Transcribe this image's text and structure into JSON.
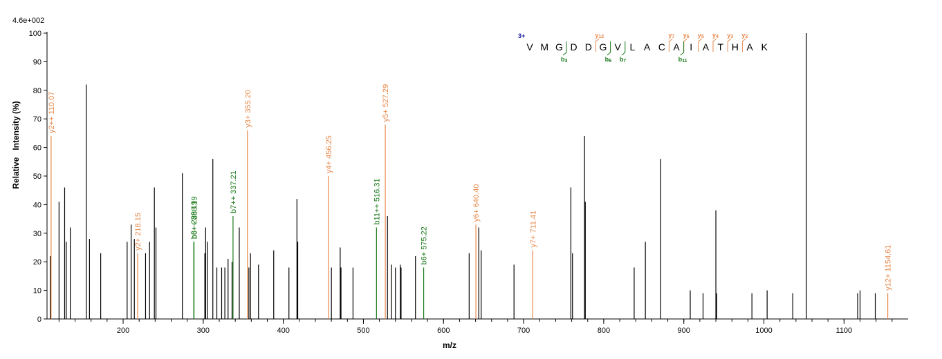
{
  "chart_data": {
    "type": "bar",
    "xlabel": "m/z",
    "ylabel": "Relative   Intensity (%)",
    "max_intensity_label": "4.6e+002",
    "xlim": [
      105,
      1180
    ],
    "ylim": [
      0,
      100
    ],
    "x_ticks": [
      200,
      300,
      400,
      500,
      600,
      700,
      800,
      900,
      1000,
      1100
    ],
    "y_ticks": [
      0,
      10,
      20,
      30,
      40,
      50,
      60,
      70,
      80,
      90,
      100
    ],
    "colors": {
      "unassigned": "#000000",
      "y_ion": "#e8884a",
      "b_ion": "#1a7a1a",
      "charge": "#1a1aa0"
    },
    "peaks": [
      {
        "x": 109,
        "y": 22
      },
      {
        "x": 110.07,
        "y": 64,
        "label": "y2++ 110.07",
        "ion": "y"
      },
      {
        "x": 120,
        "y": 41
      },
      {
        "x": 127,
        "y": 46
      },
      {
        "x": 129,
        "y": 27
      },
      {
        "x": 134,
        "y": 32
      },
      {
        "x": 154,
        "y": 82
      },
      {
        "x": 158,
        "y": 28
      },
      {
        "x": 172,
        "y": 23
      },
      {
        "x": 205,
        "y": 27
      },
      {
        "x": 210,
        "y": 33
      },
      {
        "x": 214,
        "y": 28
      },
      {
        "x": 218.15,
        "y": 23,
        "label": "y2+ 218.15",
        "ion": "y"
      },
      {
        "x": 228,
        "y": 23
      },
      {
        "x": 233,
        "y": 27
      },
      {
        "x": 239,
        "y": 46
      },
      {
        "x": 241,
        "y": 32
      },
      {
        "x": 274,
        "y": 51
      },
      {
        "x": 288.19,
        "y": 27,
        "label": "b3+ 288.19",
        "ion": "b"
      },
      {
        "x": 288.5,
        "y": 27,
        "label": "b6++ 288.19",
        "ion": "b"
      },
      {
        "x": 302,
        "y": 23
      },
      {
        "x": 303,
        "y": 32
      },
      {
        "x": 305,
        "y": 27
      },
      {
        "x": 312,
        "y": 56
      },
      {
        "x": 317,
        "y": 18
      },
      {
        "x": 323,
        "y": 18
      },
      {
        "x": 327,
        "y": 18
      },
      {
        "x": 331,
        "y": 21
      },
      {
        "x": 336,
        "y": 20
      },
      {
        "x": 337.21,
        "y": 36,
        "label": "b7++ 337.21",
        "ion": "b"
      },
      {
        "x": 345,
        "y": 32
      },
      {
        "x": 355.2,
        "y": 66,
        "label": "y3+ 355.20",
        "ion": "y"
      },
      {
        "x": 357,
        "y": 18
      },
      {
        "x": 359,
        "y": 23
      },
      {
        "x": 369,
        "y": 19
      },
      {
        "x": 388,
        "y": 24
      },
      {
        "x": 407,
        "y": 18
      },
      {
        "x": 417,
        "y": 42
      },
      {
        "x": 418,
        "y": 27
      },
      {
        "x": 456.25,
        "y": 50,
        "label": "y4+ 456.25",
        "ion": "y"
      },
      {
        "x": 460,
        "y": 18
      },
      {
        "x": 471,
        "y": 25
      },
      {
        "x": 472,
        "y": 18
      },
      {
        "x": 487,
        "y": 18
      },
      {
        "x": 516.31,
        "y": 32,
        "label": "b11++ 516.31",
        "ion": "b"
      },
      {
        "x": 527.29,
        "y": 68,
        "label": "y5+ 527.29",
        "ion": "y"
      },
      {
        "x": 530,
        "y": 36
      },
      {
        "x": 535,
        "y": 19
      },
      {
        "x": 540,
        "y": 18
      },
      {
        "x": 546,
        "y": 19
      },
      {
        "x": 547,
        "y": 18
      },
      {
        "x": 565,
        "y": 22
      },
      {
        "x": 575.22,
        "y": 18,
        "label": "b6+ 575.22",
        "ion": "b"
      },
      {
        "x": 632,
        "y": 23
      },
      {
        "x": 640.4,
        "y": 33,
        "label": "y6+ 640.40",
        "ion": "y"
      },
      {
        "x": 644,
        "y": 32
      },
      {
        "x": 647,
        "y": 24
      },
      {
        "x": 688,
        "y": 19
      },
      {
        "x": 711.41,
        "y": 24,
        "label": "y7+ 711.41",
        "ion": "y"
      },
      {
        "x": 759,
        "y": 46
      },
      {
        "x": 761,
        "y": 23
      },
      {
        "x": 776,
        "y": 64
      },
      {
        "x": 777,
        "y": 41
      },
      {
        "x": 838,
        "y": 18
      },
      {
        "x": 852,
        "y": 27
      },
      {
        "x": 871,
        "y": 56
      },
      {
        "x": 908,
        "y": 10
      },
      {
        "x": 924,
        "y": 9
      },
      {
        "x": 940,
        "y": 38
      },
      {
        "x": 941,
        "y": 9
      },
      {
        "x": 985,
        "y": 9
      },
      {
        "x": 1004,
        "y": 10
      },
      {
        "x": 1036,
        "y": 9
      },
      {
        "x": 1053,
        "y": 100
      },
      {
        "x": 1117,
        "y": 9
      },
      {
        "x": 1120,
        "y": 10
      },
      {
        "x": 1139,
        "y": 9
      },
      {
        "x": 1154.61,
        "y": 9,
        "label": "y12+ 1154.61",
        "ion": "y"
      }
    ],
    "sequence": {
      "charge": "3+",
      "residues": [
        "V",
        "M",
        "G",
        "D",
        "D",
        "G",
        "V",
        "L",
        "A",
        "C",
        "A",
        "I",
        "A",
        "T",
        "H",
        "A",
        "K"
      ],
      "y_ions": [
        {
          "label": "y",
          "index": "12",
          "after_residue": 5
        },
        {
          "label": "y",
          "index": "7",
          "after_residue": 10
        },
        {
          "label": "y",
          "index": "6",
          "after_residue": 11
        },
        {
          "label": "y",
          "index": "5",
          "after_residue": 12
        },
        {
          "label": "y",
          "index": "4",
          "after_residue": 13
        },
        {
          "label": "y",
          "index": "3",
          "after_residue": 14
        },
        {
          "label": "y",
          "index": "2",
          "after_residue": 15
        }
      ],
      "b_ions": [
        {
          "label": "b",
          "index": "3",
          "after_residue": 3
        },
        {
          "label": "b",
          "index": "6",
          "after_residue": 6
        },
        {
          "label": "b",
          "index": "7",
          "after_residue": 7
        },
        {
          "label": "b",
          "index": "11",
          "after_residue": 11
        }
      ]
    }
  }
}
